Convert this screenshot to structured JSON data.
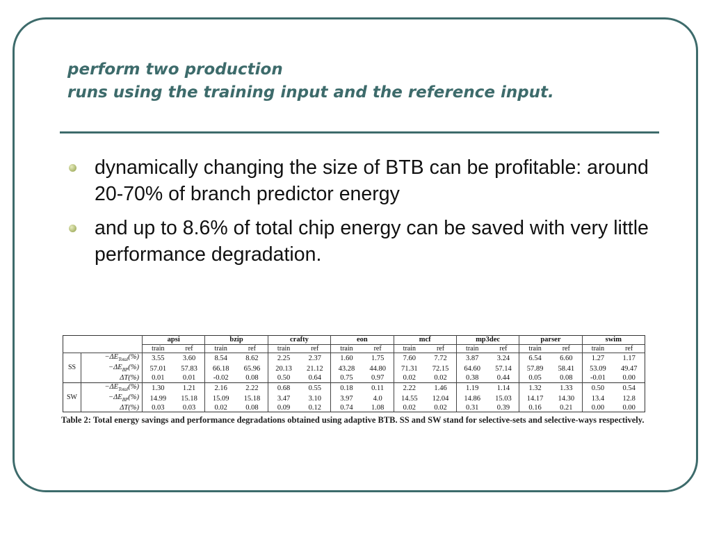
{
  "slide": {
    "title_line1": "perform two production",
    "title_line2": "runs using the training input and the reference input.",
    "bullets": [
      "dynamically changing the size of BTB can be profitable: around 20-70% of branch predictor energy",
      "and up to 8.6% of total chip energy can be saved with very little performance degradation."
    ]
  },
  "table": {
    "benchmarks": [
      "apsi",
      "bzip",
      "crafty",
      "eon",
      "mcf",
      "mp3dec",
      "parser",
      "swim"
    ],
    "subcols": [
      "train",
      "ref"
    ],
    "groups": [
      {
        "label": "SS",
        "rows": [
          {
            "metric": "−ΔE_Total(%)",
            "values": [
              "3.55",
              "3.60",
              "8.54",
              "8.62",
              "2.25",
              "2.37",
              "1.60",
              "1.75",
              "7.60",
              "7.72",
              "3.87",
              "3.24",
              "6.54",
              "6.60",
              "1.27",
              "1.17"
            ]
          },
          {
            "metric": "−ΔE_BP(%)",
            "values": [
              "57.01",
              "57.83",
              "66.18",
              "65.96",
              "20.13",
              "21.12",
              "43.28",
              "44.80",
              "71.31",
              "72.15",
              "64.60",
              "57.14",
              "57.89",
              "58.41",
              "53.09",
              "49.47"
            ]
          },
          {
            "metric": "ΔT(%)",
            "values": [
              "0.01",
              "0.01",
              "-0.02",
              "0.08",
              "0.50",
              "0.64",
              "0.75",
              "0.97",
              "0.02",
              "0.02",
              "0.38",
              "0.44",
              "0.05",
              "0.08",
              "-0.01",
              "0.00"
            ]
          }
        ]
      },
      {
        "label": "SW",
        "rows": [
          {
            "metric": "−ΔE_Total(%)",
            "values": [
              "1.30",
              "1.21",
              "2.16",
              "2.22",
              "0.68",
              "0.55",
              "0.18",
              "0.11",
              "2.22",
              "1.46",
              "1.19",
              "1.14",
              "1.32",
              "1.33",
              "0.50",
              "0.54"
            ]
          },
          {
            "metric": "−ΔE_BP(%)",
            "values": [
              "14.99",
              "15.18",
              "15.09",
              "15.18",
              "3.47",
              "3.10",
              "3.97",
              "4.0",
              "14.55",
              "12.04",
              "14.86",
              "15.03",
              "14.17",
              "14.30",
              "13.4",
              "12.8"
            ]
          },
          {
            "metric": "ΔT(%)",
            "values": [
              "0.03",
              "0.03",
              "0.02",
              "0.08",
              "0.09",
              "0.12",
              "0.74",
              "1.08",
              "0.02",
              "0.02",
              "0.31",
              "0.39",
              "0.16",
              "0.21",
              "0.00",
              "0.00"
            ]
          }
        ]
      }
    ],
    "caption": "Table 2: Total energy savings and performance degradations obtained using adaptive BTB. SS and SW stand for selective-sets and selective-ways respectively."
  }
}
